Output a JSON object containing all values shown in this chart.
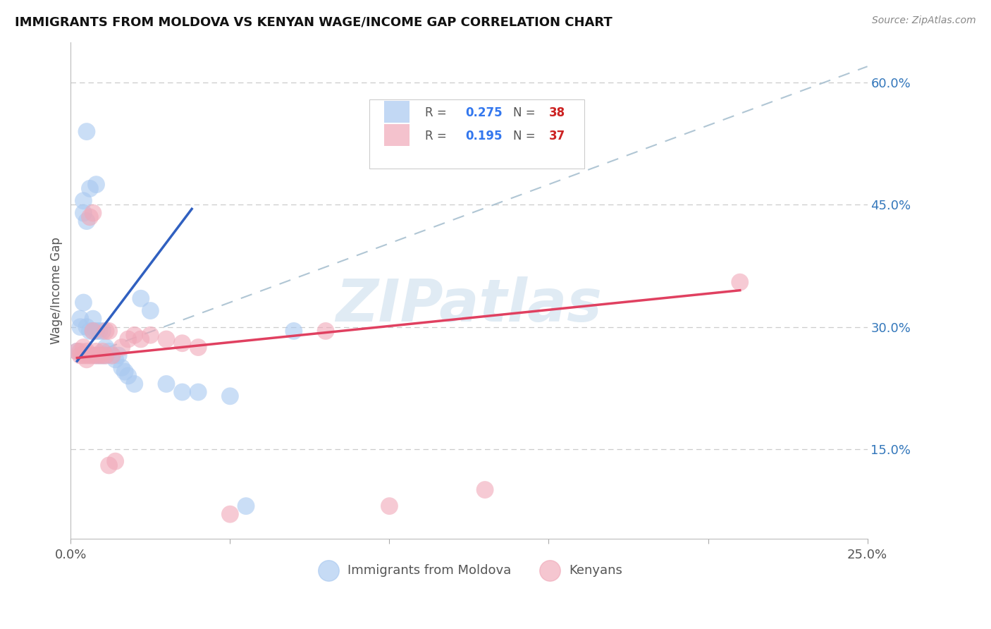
{
  "title": "IMMIGRANTS FROM MOLDOVA VS KENYAN WAGE/INCOME GAP CORRELATION CHART",
  "source": "Source: ZipAtlas.com",
  "ylabel": "Wage/Income Gap",
  "ylabel_ticks_labels": [
    "15.0%",
    "30.0%",
    "45.0%",
    "60.0%"
  ],
  "ylabel_ticks_values": [
    0.15,
    0.3,
    0.45,
    0.6
  ],
  "xmin": 0.0,
  "xmax": 0.25,
  "ymin": 0.04,
  "ymax": 0.65,
  "legend_label_blue": "Immigrants from Moldova",
  "legend_label_pink": "Kenyans",
  "blue_color": "#A8C8F0",
  "pink_color": "#F0A8B8",
  "blue_line_color": "#3060C0",
  "pink_line_color": "#E04060",
  "diag_line_color": "#A8C0D0",
  "grid_color": "#CCCCCC",
  "watermark": "ZIPatlas",
  "scatter_blue": [
    [
      0.002,
      0.27
    ],
    [
      0.003,
      0.3
    ],
    [
      0.003,
      0.31
    ],
    [
      0.004,
      0.455
    ],
    [
      0.004,
      0.44
    ],
    [
      0.004,
      0.33
    ],
    [
      0.005,
      0.54
    ],
    [
      0.005,
      0.43
    ],
    [
      0.005,
      0.3
    ],
    [
      0.006,
      0.47
    ],
    [
      0.006,
      0.295
    ],
    [
      0.007,
      0.31
    ],
    [
      0.007,
      0.295
    ],
    [
      0.008,
      0.295
    ],
    [
      0.008,
      0.265
    ],
    [
      0.009,
      0.295
    ],
    [
      0.009,
      0.265
    ],
    [
      0.01,
      0.295
    ],
    [
      0.01,
      0.265
    ],
    [
      0.011,
      0.275
    ],
    [
      0.011,
      0.265
    ],
    [
      0.012,
      0.27
    ],
    [
      0.013,
      0.265
    ],
    [
      0.014,
      0.26
    ],
    [
      0.015,
      0.265
    ],
    [
      0.016,
      0.25
    ],
    [
      0.017,
      0.245
    ],
    [
      0.018,
      0.24
    ],
    [
      0.02,
      0.23
    ],
    [
      0.022,
      0.335
    ],
    [
      0.025,
      0.32
    ],
    [
      0.03,
      0.23
    ],
    [
      0.035,
      0.22
    ],
    [
      0.04,
      0.22
    ],
    [
      0.05,
      0.215
    ],
    [
      0.055,
      0.08
    ],
    [
      0.07,
      0.295
    ],
    [
      0.008,
      0.475
    ]
  ],
  "scatter_pink": [
    [
      0.002,
      0.27
    ],
    [
      0.003,
      0.265
    ],
    [
      0.003,
      0.27
    ],
    [
      0.004,
      0.265
    ],
    [
      0.004,
      0.275
    ],
    [
      0.005,
      0.265
    ],
    [
      0.005,
      0.27
    ],
    [
      0.005,
      0.26
    ],
    [
      0.006,
      0.435
    ],
    [
      0.006,
      0.265
    ],
    [
      0.007,
      0.265
    ],
    [
      0.007,
      0.295
    ],
    [
      0.008,
      0.265
    ],
    [
      0.008,
      0.27
    ],
    [
      0.009,
      0.265
    ],
    [
      0.01,
      0.27
    ],
    [
      0.01,
      0.265
    ],
    [
      0.011,
      0.295
    ],
    [
      0.011,
      0.265
    ],
    [
      0.012,
      0.295
    ],
    [
      0.012,
      0.13
    ],
    [
      0.013,
      0.265
    ],
    [
      0.014,
      0.135
    ],
    [
      0.016,
      0.275
    ],
    [
      0.018,
      0.285
    ],
    [
      0.02,
      0.29
    ],
    [
      0.022,
      0.285
    ],
    [
      0.025,
      0.29
    ],
    [
      0.03,
      0.285
    ],
    [
      0.035,
      0.28
    ],
    [
      0.04,
      0.275
    ],
    [
      0.05,
      0.07
    ],
    [
      0.08,
      0.295
    ],
    [
      0.1,
      0.08
    ],
    [
      0.13,
      0.1
    ],
    [
      0.21,
      0.355
    ],
    [
      0.007,
      0.44
    ]
  ],
  "blue_line_x": [
    0.002,
    0.038
  ],
  "blue_line_y": [
    0.258,
    0.445
  ],
  "pink_line_x": [
    0.002,
    0.21
  ],
  "pink_line_y": [
    0.262,
    0.345
  ],
  "diag_line_x": [
    0.005,
    0.25
  ],
  "diag_line_y": [
    0.265,
    0.62
  ]
}
